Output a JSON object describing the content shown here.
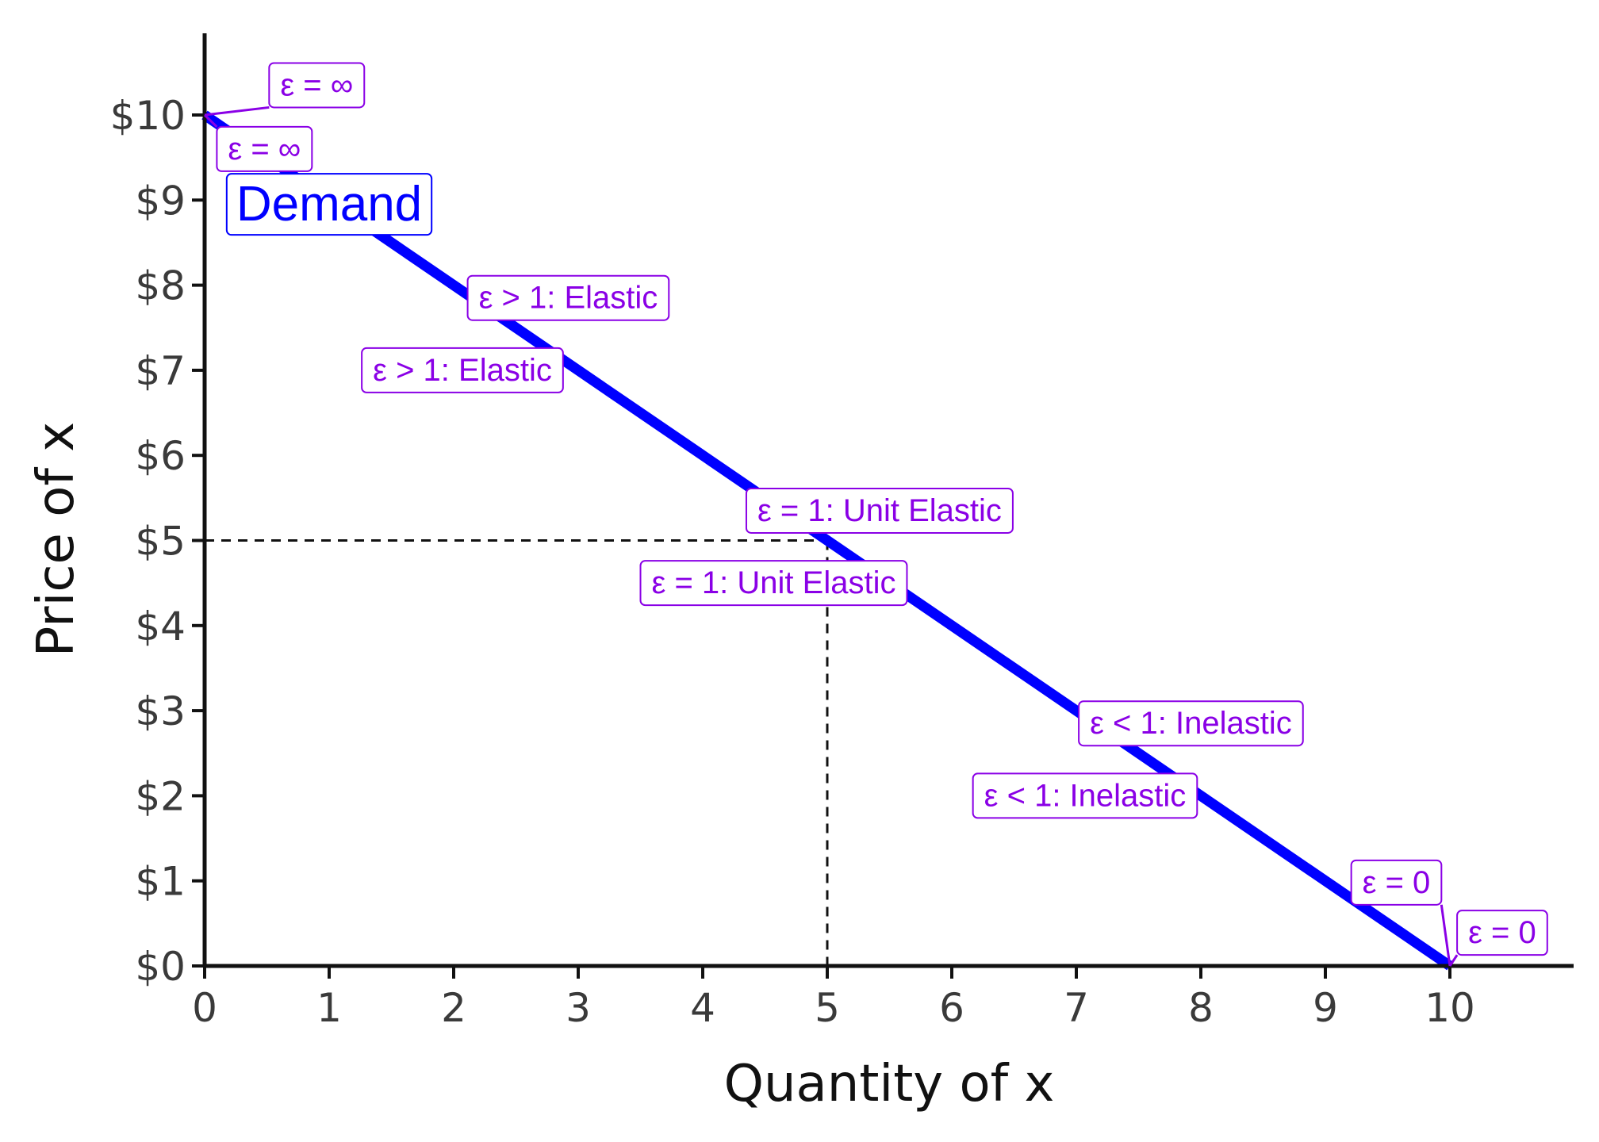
{
  "chart_data": {
    "type": "line",
    "title": "",
    "xlabel": "Quantity of x",
    "ylabel": "Price of x",
    "xlim": [
      0,
      11
    ],
    "ylim": [
      0,
      11
    ],
    "x_ticks": [
      0,
      1,
      2,
      3,
      4,
      5,
      6,
      7,
      8,
      9,
      10
    ],
    "x_tick_labels": [
      "0",
      "1",
      "2",
      "3",
      "4",
      "5",
      "6",
      "7",
      "8",
      "9",
      "10"
    ],
    "y_ticks": [
      0,
      1,
      2,
      3,
      4,
      5,
      6,
      7,
      8,
      9,
      10
    ],
    "y_tick_labels": [
      "$0",
      "$1",
      "$2",
      "$3",
      "$4",
      "$5",
      "$6",
      "$7",
      "$8",
      "$9",
      "$10"
    ],
    "grid": false,
    "series": [
      {
        "name": "Demand",
        "color": "#0000ff",
        "x": [
          0,
          10
        ],
        "y": [
          10,
          0
        ]
      }
    ],
    "series_label": {
      "text": "Demand",
      "x": 1.0,
      "y": 8.95
    },
    "reference_point": {
      "x": 5,
      "y": 5
    },
    "annotation_color": "#8a00e6",
    "annotations": [
      {
        "text": "ε = ∞",
        "x": 0.9,
        "y": 10.35,
        "point_x": 0,
        "point_y": 10,
        "leader": true
      },
      {
        "text": "ε = ∞",
        "x": 0.48,
        "y": 9.6,
        "point_x": 0,
        "point_y": 10,
        "leader": true
      },
      {
        "text": "ε > 1: Elastic",
        "x": 2.92,
        "y": 7.85,
        "leader": false
      },
      {
        "text": "ε > 1: Elastic",
        "x": 2.07,
        "y": 7.0,
        "leader": false
      },
      {
        "text": "ε = 1: Unit Elastic",
        "x": 5.42,
        "y": 5.35,
        "leader": false
      },
      {
        "text": "ε = 1: Unit Elastic",
        "x": 4.57,
        "y": 4.5,
        "leader": false
      },
      {
        "text": "ε < 1: Inelastic",
        "x": 7.92,
        "y": 2.85,
        "leader": false
      },
      {
        "text": "ε < 1: Inelastic",
        "x": 7.07,
        "y": 2.0,
        "leader": false
      },
      {
        "text": "ε = 0",
        "x": 9.57,
        "y": 0.98,
        "point_x": 10,
        "point_y": 0,
        "leader": true
      },
      {
        "text": "ε = 0",
        "x": 10.42,
        "y": 0.39,
        "point_x": 10,
        "point_y": 0,
        "leader": true
      }
    ]
  }
}
